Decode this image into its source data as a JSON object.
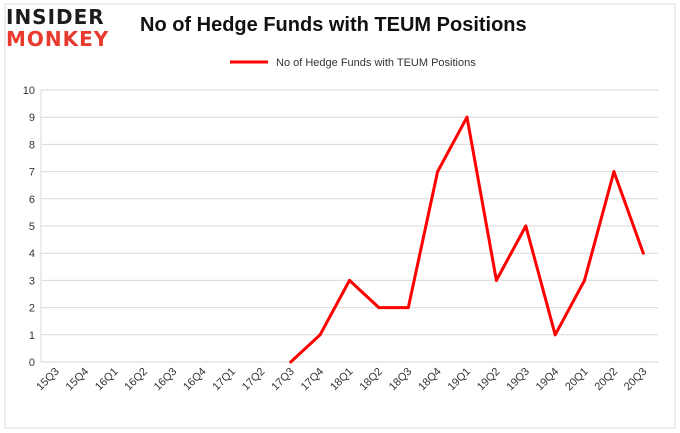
{
  "logo": {
    "line1": "INSIDER",
    "line2": "MONKEY"
  },
  "chart_data": {
    "type": "line",
    "title": "No of Hedge Funds with TEUM Positions",
    "xlabel": "",
    "ylabel": "",
    "legend_position": "top-center",
    "grid": true,
    "ylim": [
      0,
      10
    ],
    "yticks": [
      0,
      1,
      2,
      3,
      4,
      5,
      6,
      7,
      8,
      9,
      10
    ],
    "categories": [
      "15Q3",
      "15Q4",
      "16Q1",
      "16Q2",
      "16Q3",
      "16Q4",
      "17Q1",
      "17Q2",
      "17Q3",
      "17Q4",
      "18Q1",
      "18Q2",
      "18Q3",
      "18Q4",
      "19Q1",
      "19Q2",
      "19Q3",
      "19Q4",
      "20Q1",
      "20Q2",
      "20Q3"
    ],
    "series": [
      {
        "name": "No of Hedge Funds with TEUM  Positions",
        "color": "#ff0000",
        "values": [
          null,
          null,
          null,
          null,
          null,
          null,
          null,
          null,
          0,
          1,
          3,
          2,
          2,
          7,
          9,
          3,
          5,
          1,
          3,
          7,
          4
        ]
      }
    ]
  }
}
